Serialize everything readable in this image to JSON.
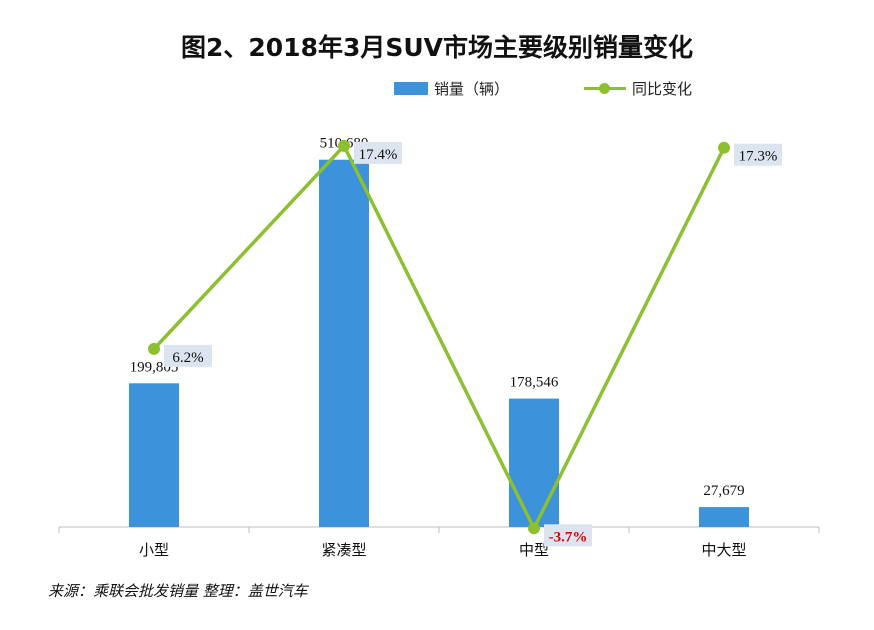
{
  "title": "图2、2018年3月SUV市场主要级别销量变化",
  "legend": {
    "bar_label": "销量（辆）",
    "line_label": "同比变化"
  },
  "source": "来源：乘联会批发销量   整理：盖世汽车",
  "colors": {
    "bar": "#3c92db",
    "line": "#8cc031",
    "pct_label_bg": "#dbe4ef",
    "negative_text": "#e00000"
  },
  "chart_data": {
    "type": "bar",
    "categories": [
      "小型",
      "紧凑型",
      "中型",
      "中大型"
    ],
    "series": [
      {
        "name": "销量（辆）",
        "type": "bar",
        "values": [
          199805,
          510680,
          178546,
          27679
        ],
        "labels": [
          "199,805",
          "510,680",
          "178,546",
          "27,679"
        ]
      },
      {
        "name": "同比变化",
        "type": "line",
        "values": [
          6.2,
          17.4,
          -3.7,
          17.3
        ],
        "labels": [
          "6.2%",
          "17.4%",
          "-3.7%",
          "17.3%"
        ]
      }
    ],
    "title": "图2、2018年3月SUV市场主要级别销量变化",
    "xlabel": "",
    "ylabel": "",
    "ylim": [
      0,
      520000
    ],
    "y2lim": [
      -6,
      18
    ],
    "grid": false,
    "legend_position": "top"
  }
}
